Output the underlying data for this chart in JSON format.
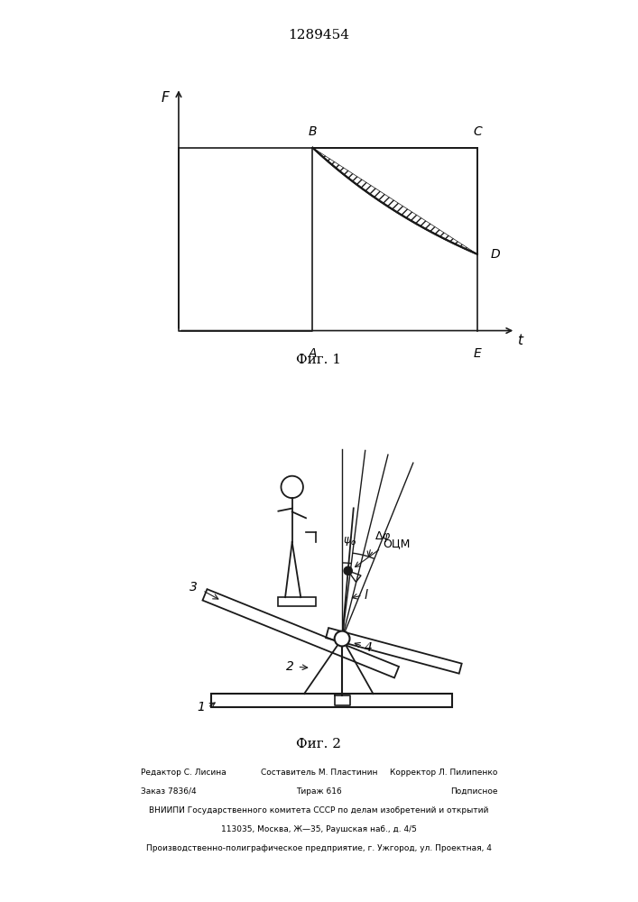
{
  "title": "1289454",
  "fig1_caption": "Фиг. 1",
  "fig2_caption": "Фиг. 2",
  "footer_line1a": "Редактор С. Лисина",
  "footer_line1b": "Составитель М. Пластинин",
  "footer_line1c": "Корректор Л. Пилипенко",
  "footer_line2a": "Заказ 7836/4",
  "footer_line2b": "Тираж 616",
  "footer_line2c": "Подписное",
  "footer_line3": "ВНИИПИ Государственного комитета СССР по делам изобретений и открытий",
  "footer_line4": "113035, Москва, Ж—35, Раушская наб., д. 4/5",
  "footer_line5": "Производственно-полиграфическое предприятие, г. Ужгород, ул. Проектная, 4",
  "bg_color": "#ffffff",
  "line_color": "#1a1a1a"
}
